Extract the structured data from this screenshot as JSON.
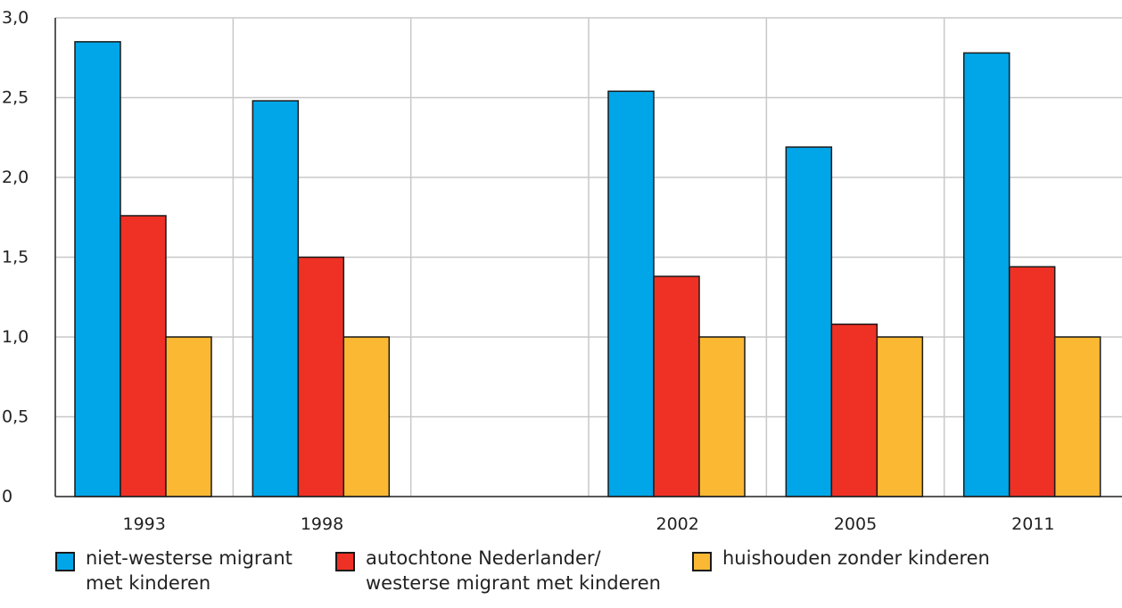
{
  "chart_data": {
    "type": "bar",
    "categories": [
      "1993",
      "1998",
      "",
      "2002",
      "2005",
      "2011"
    ],
    "series": [
      {
        "name": "niet-westerse migrant\nmet kinderen",
        "color": "#00a6e8",
        "values": [
          2.85,
          2.48,
          null,
          2.54,
          2.19,
          2.78
        ]
      },
      {
        "name": "autochtone Nederlander/\nwesterse migrant met kinderen",
        "color": "#ee3124",
        "values": [
          1.76,
          1.5,
          null,
          1.38,
          1.08,
          1.44
        ]
      },
      {
        "name": "huishouden zonder kinderen",
        "color": "#fbb933",
        "values": [
          1.0,
          1.0,
          null,
          1.0,
          1.0,
          1.0
        ]
      }
    ],
    "y_ticks": [
      "0",
      "0,5",
      "1,0",
      "1,5",
      "2,0",
      "2,5",
      "3,0"
    ],
    "ylim": [
      0,
      3
    ],
    "grid": true,
    "legend_position": "bottom"
  }
}
